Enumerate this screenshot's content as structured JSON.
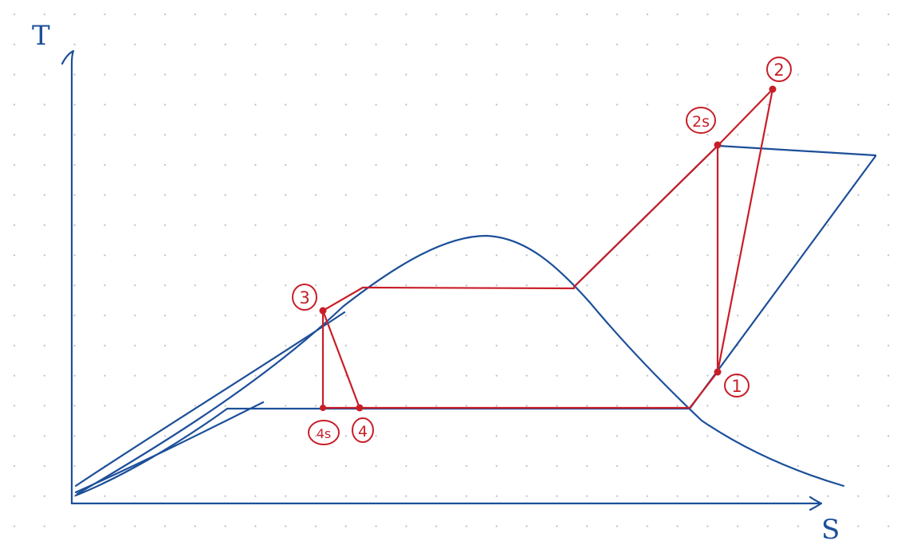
{
  "diagram": {
    "axis_labels": {
      "y": "T",
      "x": "S"
    },
    "state_points": [
      {
        "id": "1",
        "label": "1"
      },
      {
        "id": "2",
        "label": "2"
      },
      {
        "id": "2s",
        "label": "2s"
      },
      {
        "id": "3",
        "label": "3"
      },
      {
        "id": "4",
        "label": "4"
      },
      {
        "id": "4s",
        "label": "4s"
      }
    ],
    "colors": {
      "curve": "#1c4f99",
      "cycle": "#c81e28",
      "grid_dots": "#b9bec6",
      "background": "#ffffff"
    }
  }
}
